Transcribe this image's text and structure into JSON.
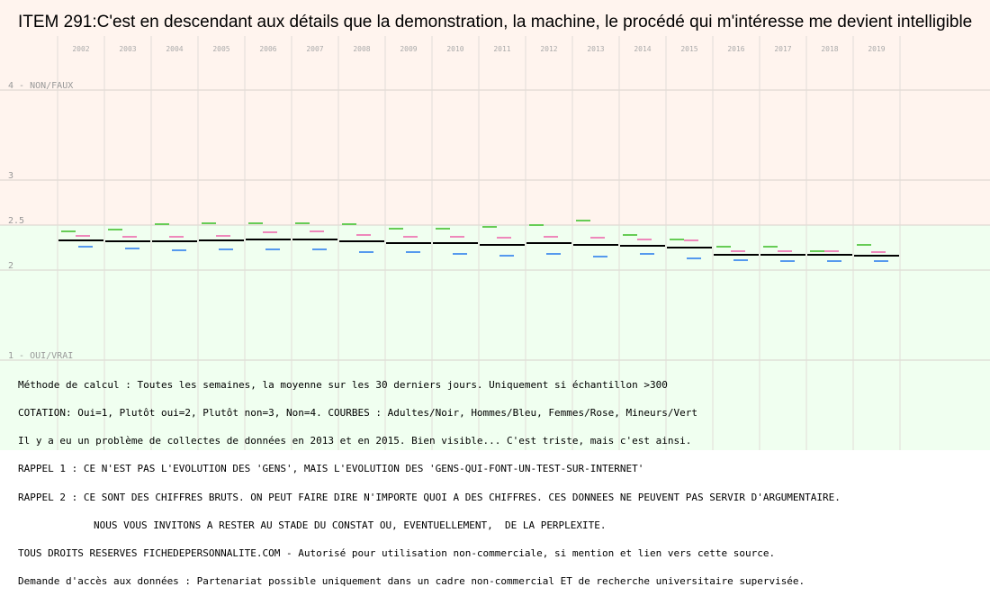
{
  "page_title": "ITEM 291:C'est en descendant aux détails que la demonstration, la machine, le procédé qui m'intéresse me devient intelligible",
  "chart_data": {
    "type": "line",
    "x": [
      "2002",
      "2003",
      "2004",
      "2005",
      "2006",
      "2007",
      "2008",
      "2009",
      "2010",
      "2011",
      "2012",
      "2013",
      "2014",
      "2015",
      "2016",
      "2017",
      "2018",
      "2019"
    ],
    "y_ticks": [
      {
        "value": 4,
        "label": "4 - NON/FAUX"
      },
      {
        "value": 3,
        "label": "3"
      },
      {
        "value": 2.5,
        "label": "2.5"
      },
      {
        "value": 2,
        "label": "2"
      },
      {
        "value": 1,
        "label": "1 - OUI/VRAI"
      }
    ],
    "ylim": [
      1,
      4
    ],
    "bands": [
      {
        "from": 2.5,
        "to": 4,
        "color": "#fff4ee"
      },
      {
        "from": 1,
        "to": 2.5,
        "color": "#f0fff0"
      }
    ],
    "grid": true,
    "series": [
      {
        "color": "#000000",
        "values": [
          2.33,
          2.32,
          2.32,
          2.33,
          2.34,
          2.34,
          2.32,
          2.3,
          2.3,
          2.28,
          2.3,
          2.28,
          2.27,
          2.25,
          2.17,
          2.17,
          2.17,
          2.16
        ]
      },
      {
        "color": "#ee88bb",
        "values": [
          2.38,
          2.37,
          2.37,
          2.38,
          2.42,
          2.43,
          2.39,
          2.37,
          2.37,
          2.36,
          2.37,
          2.36,
          2.34,
          2.33,
          2.21,
          2.21,
          2.21,
          2.2
        ]
      },
      {
        "color": "#5599ee",
        "values": [
          2.26,
          2.24,
          2.22,
          2.23,
          2.23,
          2.23,
          2.2,
          2.2,
          2.18,
          2.16,
          2.18,
          2.15,
          2.18,
          2.13,
          2.11,
          2.1,
          2.1,
          2.1
        ]
      },
      {
        "color": "#66cc55",
        "values": [
          2.43,
          2.45,
          2.51,
          2.52,
          2.52,
          2.52,
          2.51,
          2.46,
          2.46,
          2.48,
          2.5,
          2.55,
          2.39,
          2.34,
          2.26,
          2.26,
          2.21,
          2.28
        ]
      }
    ]
  },
  "notes": [
    "Méthode de calcul : Toutes les semaines, la moyenne sur les 30 derniers jours. Uniquement si échantillon >300",
    "COTATION: Oui=1, Plutôt oui=2, Plutôt non=3, Non=4. COURBES : Adultes/Noir, Hommes/Bleu, Femmes/Rose, Mineurs/Vert",
    "Il y a eu un problème de collectes de données en 2013 et en 2015. Bien visible... C'est triste, mais c'est ainsi.",
    "RAPPEL 1 : CE N'EST PAS L'EVOLUTION DES 'GENS', MAIS L'EVOLUTION DES 'GENS-QUI-FONT-UN-TEST-SUR-INTERNET'",
    "RAPPEL 2 : CE SONT DES CHIFFRES BRUTS. ON PEUT FAIRE DIRE N'IMPORTE QUOI A DES CHIFFRES. CES DONNEES NE PEUVENT PAS SERVIR D'ARGUMENTAIRE.",
    "NOUS VOUS INVITONS A RESTER AU STADE DU CONSTAT OU, EVENTUELLEMENT,  DE LA PERPLEXITE.",
    "TOUS DROITS RESERVES FICHEDEPERSONNALITE.COM - Autorisé pour utilisation non-commerciale, si mention et lien vers cette source.",
    "Demande d'accès aux données : Partenariat possible uniquement dans un cadre non-commercial ET de recherche universitaire supervisée."
  ]
}
